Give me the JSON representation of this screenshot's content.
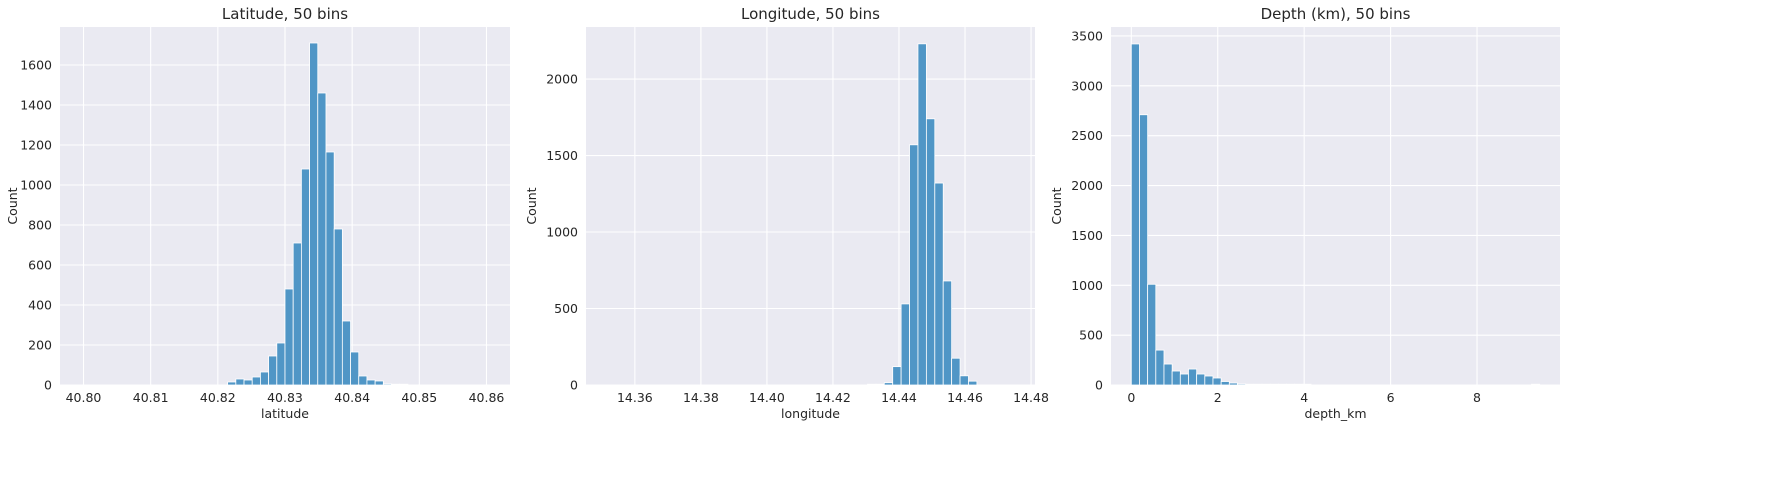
{
  "chart_data": [
    {
      "type": "bar",
      "title": "Latitude, 50 bins",
      "xlabel": "latitude",
      "ylabel": "Count",
      "xlim": [
        40.7965,
        40.8635
      ],
      "ylim": [
        0,
        1790
      ],
      "xticks": [
        40.8,
        40.81,
        40.82,
        40.83,
        40.84,
        40.85,
        40.86
      ],
      "xtick_labels": [
        "40.80",
        "40.81",
        "40.82",
        "40.83",
        "40.84",
        "40.85",
        "40.86"
      ],
      "yticks": [
        0,
        200,
        400,
        600,
        800,
        1000,
        1200,
        1400,
        1600
      ],
      "ytick_labels": [
        "0",
        "200",
        "400",
        "600",
        "800",
        "1000",
        "1200",
        "1400",
        "1600"
      ],
      "bin_start": 40.7995,
      "bin_width": 0.00122,
      "values": [
        0,
        0,
        0,
        0,
        0,
        0,
        0,
        0,
        0,
        0,
        0,
        0,
        0,
        0,
        0,
        0,
        0,
        0,
        15,
        30,
        25,
        40,
        65,
        145,
        210,
        480,
        710,
        1080,
        1710,
        1460,
        1165,
        780,
        320,
        165,
        45,
        25,
        20,
        5,
        3,
        2,
        0,
        0,
        0,
        0,
        0,
        0,
        0,
        0,
        0,
        0
      ],
      "grid": true
    },
    {
      "type": "bar",
      "title": "Longitude, 50 bins",
      "xlabel": "longitude",
      "ylabel": "Count",
      "xlim": [
        14.3452,
        14.4812
      ],
      "ylim": [
        0,
        2340
      ],
      "xticks": [
        14.36,
        14.38,
        14.4,
        14.42,
        14.44,
        14.46,
        14.48
      ],
      "xtick_labels": [
        "14.36",
        "14.38",
        "14.40",
        "14.42",
        "14.44",
        "14.46",
        "14.48"
      ],
      "yticks": [
        0,
        500,
        1000,
        1500,
        2000
      ],
      "ytick_labels": [
        "0",
        "500",
        "1000",
        "1500",
        "2000"
      ],
      "bin_start": 14.3514,
      "bin_width": 0.00255,
      "values": [
        0,
        0,
        0,
        0,
        0,
        0,
        0,
        0,
        0,
        0,
        0,
        0,
        0,
        0,
        0,
        0,
        0,
        0,
        0,
        0,
        0,
        0,
        0,
        0,
        0,
        0,
        0,
        0,
        0,
        0,
        0,
        2,
        5,
        15,
        120,
        530,
        1570,
        2230,
        1740,
        1320,
        680,
        175,
        60,
        25,
        0,
        0,
        0,
        0,
        0,
        0
      ],
      "grid": true
    },
    {
      "type": "bar",
      "title": "Depth (km), 50 bins",
      "xlabel": "depth_km",
      "ylabel": "Count",
      "xlim": [
        -0.47,
        9.92
      ],
      "ylim": [
        0,
        3590
      ],
      "xticks": [
        0,
        2,
        4,
        6,
        8
      ],
      "xtick_labels": [
        "0",
        "2",
        "4",
        "6",
        "8"
      ],
      "yticks": [
        0,
        500,
        1000,
        1500,
        2000,
        2500,
        3000,
        3500
      ],
      "ytick_labels": [
        "0",
        "500",
        "1000",
        "1500",
        "2000",
        "2500",
        "3000",
        "3500"
      ],
      "bin_start": 0,
      "bin_width": 0.189,
      "values": [
        3420,
        2710,
        1010,
        350,
        210,
        140,
        110,
        160,
        110,
        90,
        70,
        35,
        20,
        10,
        8,
        5,
        3,
        2,
        2,
        1,
        1,
        1,
        0,
        0,
        0,
        0,
        0,
        0,
        0,
        0,
        0,
        0,
        0,
        0,
        0,
        0,
        0,
        0,
        0,
        0,
        0,
        0,
        0,
        0,
        0,
        0,
        0,
        0,
        0,
        1
      ],
      "grid": true
    }
  ],
  "colors": {
    "bar_fill": "#5096c6",
    "bar_edge": "#ffffff",
    "plot_background": "#eaeaf2",
    "grid": "#ffffff"
  }
}
